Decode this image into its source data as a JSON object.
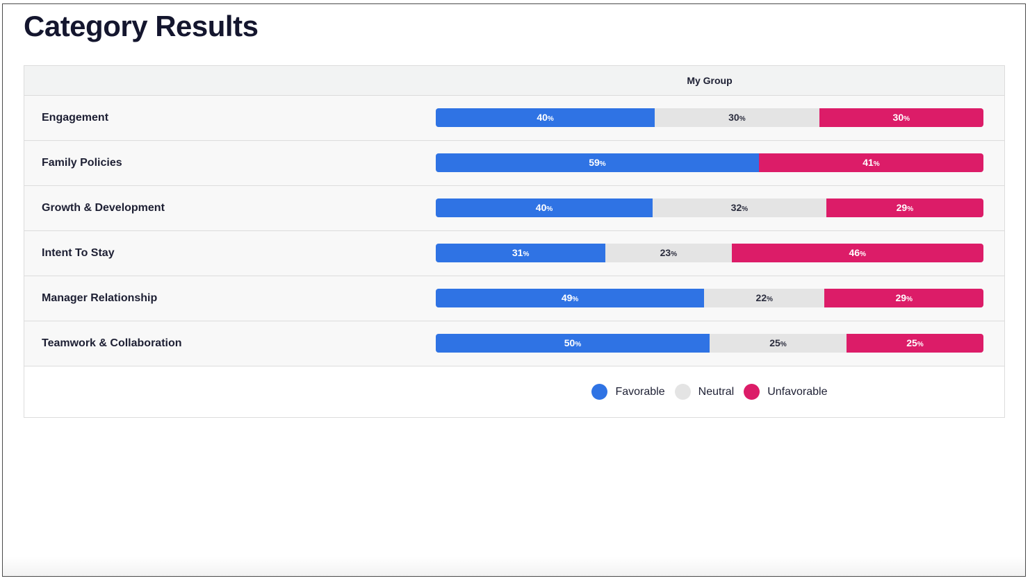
{
  "page": {
    "title": "Category Results"
  },
  "colors": {
    "favorable": "#2f73e4",
    "neutral": "#e4e4e4",
    "unfavorable": "#dc1c68"
  },
  "chart_data": {
    "type": "bar",
    "orientation": "horizontal",
    "stacked": true,
    "column_header": "My Group",
    "categories": [
      "Engagement",
      "Family Policies",
      "Growth & Development",
      "Intent To Stay",
      "Manager Relationship",
      "Teamwork & Collaboration"
    ],
    "series": [
      {
        "name": "Favorable",
        "key": "favorable",
        "values": [
          40,
          59,
          40,
          31,
          49,
          50
        ]
      },
      {
        "name": "Neutral",
        "key": "neutral",
        "values": [
          30,
          0,
          32,
          23,
          22,
          25
        ]
      },
      {
        "name": "Unfavorable",
        "key": "unfavorable",
        "values": [
          30,
          41,
          29,
          46,
          29,
          25
        ]
      }
    ],
    "value_suffix": "%",
    "legend_position": "bottom-center"
  }
}
